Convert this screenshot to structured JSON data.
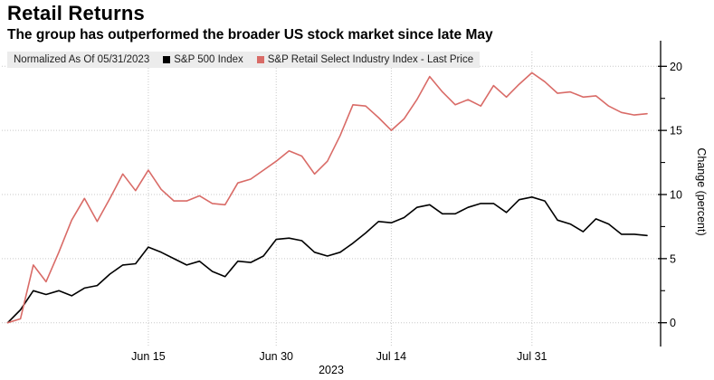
{
  "header": {
    "title": "Retail Returns",
    "subtitle": "The group has outperformed the broader US stock market since late May"
  },
  "legend": {
    "normalized_label": "Normalized As Of 05/31/2023",
    "items": [
      {
        "label": "S&P 500 Index",
        "color": "#000000"
      },
      {
        "label": "S&P Retail Select Industry Index - Last Price",
        "color": "#d96b67"
      }
    ]
  },
  "chart_data": {
    "type": "line",
    "title": "Retail Returns",
    "subtitle": "The group has outperformed the broader US stock market since late May",
    "normalized_as_of": "05/31/2023",
    "ylabel": "Change (percent)",
    "year_label": "2023",
    "ylim": [
      0,
      20
    ],
    "y_ticks": [
      0,
      5,
      10,
      15,
      20
    ],
    "y_minor_ticks": [
      2.5,
      7.5,
      12.5,
      17.5
    ],
    "grid": "dotted",
    "legend_position": "top-left",
    "x": [
      "05/31",
      "06/01",
      "06/02",
      "06/05",
      "06/06",
      "06/07",
      "06/08",
      "06/09",
      "06/12",
      "06/13",
      "06/14",
      "06/15",
      "06/16",
      "06/20",
      "06/21",
      "06/22",
      "06/23",
      "06/26",
      "06/27",
      "06/28",
      "06/29",
      "06/30",
      "07/03",
      "07/05",
      "07/06",
      "07/07",
      "07/10",
      "07/11",
      "07/12",
      "07/13",
      "07/14",
      "07/17",
      "07/18",
      "07/19",
      "07/20",
      "07/21",
      "07/24",
      "07/25",
      "07/26",
      "07/27",
      "07/28",
      "07/31",
      "08/01",
      "08/02",
      "08/03",
      "08/04",
      "08/07",
      "08/08",
      "08/09",
      "08/10",
      "08/11"
    ],
    "x_ticks": [
      {
        "label": "Jun 15",
        "date": "06/15"
      },
      {
        "label": "Jun 30",
        "date": "06/30"
      },
      {
        "label": "Jul 14",
        "date": "07/14"
      },
      {
        "label": "Jul 31",
        "date": "07/31"
      }
    ],
    "series": [
      {
        "name": "S&P 500 Index",
        "color": "#000000",
        "values": [
          0,
          1.0,
          2.5,
          2.2,
          2.5,
          2.1,
          2.7,
          2.9,
          3.8,
          4.5,
          4.6,
          5.9,
          5.5,
          5.0,
          4.5,
          4.8,
          4.0,
          3.6,
          4.8,
          4.7,
          5.2,
          6.5,
          6.6,
          6.4,
          5.5,
          5.2,
          5.5,
          6.2,
          7.0,
          7.9,
          7.8,
          8.2,
          9.0,
          9.2,
          8.5,
          8.5,
          9.0,
          9.3,
          9.3,
          8.6,
          9.6,
          9.8,
          9.5,
          8.0,
          7.7,
          7.1,
          8.1,
          7.7,
          6.9,
          6.9,
          6.8
        ]
      },
      {
        "name": "S&P Retail Select Industry Index - Last Price",
        "color": "#d96b67",
        "values": [
          0,
          0.3,
          4.5,
          3.2,
          5.5,
          8.0,
          9.7,
          7.9,
          9.7,
          11.6,
          10.3,
          11.9,
          10.4,
          9.5,
          9.5,
          9.9,
          9.3,
          9.2,
          10.9,
          11.2,
          11.9,
          12.6,
          13.4,
          13.0,
          11.6,
          12.6,
          14.6,
          17.0,
          16.9,
          16.0,
          15.0,
          15.9,
          17.4,
          19.2,
          18.0,
          17.0,
          17.4,
          16.9,
          18.5,
          17.6,
          18.6,
          19.5,
          18.8,
          17.9,
          18.0,
          17.6,
          17.7,
          16.9,
          16.4,
          16.2,
          16.3
        ]
      }
    ]
  }
}
